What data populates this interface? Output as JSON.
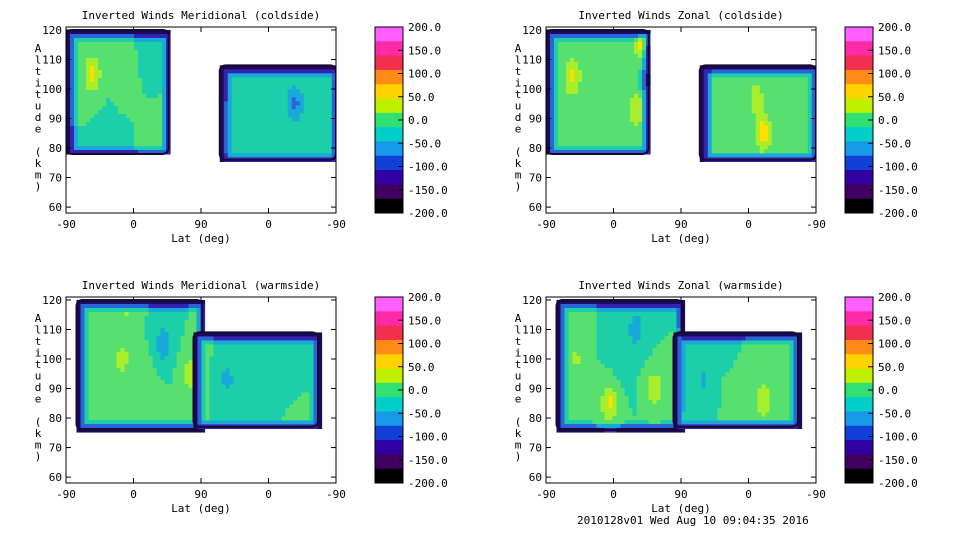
{
  "footer_label": "2010128v01 Wed Aug 10 09:04:35 2016",
  "colorbar": {
    "labels": [
      "200.0",
      "150.0",
      "100.0",
      "50.0",
      "0.0",
      "-50.0",
      "-100.0",
      "-150.0",
      "-200.0"
    ],
    "range": [
      -200,
      200
    ],
    "colors": [
      "#ff60ff",
      "#ff2aa8",
      "#f0304e",
      "#ff8a18",
      "#ffd200",
      "#bff000",
      "#30e070",
      "#00d0c8",
      "#1898e8",
      "#1040d8",
      "#3000a0",
      "#400060",
      "#000000"
    ]
  },
  "contour_colors": [
    "#1a0a5c",
    "#3524b0",
    "#2a64d8",
    "#1aa8d8",
    "#1ccfa8",
    "#57e070",
    "#a9ee2c",
    "#ffe000",
    "#ffa800",
    "#e85a10"
  ],
  "chart_data": [
    {
      "type": "heatmap",
      "title": "Inverted Winds Meridional (coldside)",
      "xlabel": "Lat (deg)",
      "ylabel": "Altitude (km)",
      "x_ticks": [
        "-90",
        "0",
        "90",
        "0",
        "-90"
      ],
      "y_ticks": [
        "60",
        "70",
        "80",
        "90",
        "100",
        "110",
        "120"
      ],
      "ylim": [
        58,
        121
      ],
      "zlim": [
        -200,
        200
      ],
      "ascending_lat_range": [
        -90,
        47
      ],
      "descending_lat_range": [
        65,
        -90
      ],
      "ascending_alt_range": [
        78,
        120
      ],
      "descending_alt_range": [
        76,
        108
      ],
      "blobs": [
        {
          "x": -55,
          "y": 105,
          "value": 90,
          "spread": 12
        },
        {
          "x": 30,
          "y": 107,
          "value": -35,
          "spread": 14
        },
        {
          "x": -20,
          "y": 85,
          "value": -10,
          "spread": 20
        },
        {
          "x": 20,
          "y": 86,
          "value": 40,
          "spread": 12
        },
        {
          "x": -10,
          "y": 100,
          "value": 25,
          "spread": 14
        },
        {
          "x": 110,
          "y": 88,
          "value": 65,
          "spread": 10
        },
        {
          "x": 50,
          "y": 92,
          "value": 50,
          "spread": 15
        },
        {
          "x": 150,
          "y": 90,
          "value": -20,
          "spread": 18
        },
        {
          "x": 215,
          "y": 95,
          "value": -90,
          "spread": 12
        }
      ]
    },
    {
      "type": "heatmap",
      "title": "Inverted Winds Zonal (coldside)",
      "xlabel": "Lat (deg)",
      "ylabel": "Altitude (km)",
      "x_ticks": [
        "-90",
        "0",
        "90",
        "0",
        "-90"
      ],
      "y_ticks": [
        "60",
        "70",
        "80",
        "90",
        "100",
        "110",
        "120"
      ],
      "ylim": [
        58,
        121
      ],
      "zlim": [
        -200,
        200
      ],
      "ascending_lat_range": [
        -90,
        47
      ],
      "descending_lat_range": [
        65,
        -90
      ],
      "ascending_alt_range": [
        78,
        120
      ],
      "descending_alt_range": [
        76,
        108
      ],
      "blobs": [
        {
          "x": 40,
          "y": 118,
          "value": 130,
          "spread": 14
        },
        {
          "x": -55,
          "y": 104,
          "value": 90,
          "spread": 12
        },
        {
          "x": 30,
          "y": 93,
          "value": 80,
          "spread": 12
        },
        {
          "x": 45,
          "y": 103,
          "value": -70,
          "spread": 10
        },
        {
          "x": -20,
          "y": 92,
          "value": 10,
          "spread": 20
        },
        {
          "x": 110,
          "y": 92,
          "value": -15,
          "spread": 14
        },
        {
          "x": 160,
          "y": 90,
          "value": 30,
          "spread": 15
        },
        {
          "x": 200,
          "y": 85,
          "value": 100,
          "spread": 12
        },
        {
          "x": 190,
          "y": 97,
          "value": 60,
          "spread": 12
        }
      ]
    },
    {
      "type": "heatmap",
      "title": "Inverted Winds Meridional (warmside)",
      "xlabel": "Lat (deg)",
      "ylabel": "Altitude (km)",
      "x_ticks": [
        "-90",
        "0",
        "90",
        "0",
        "-90"
      ],
      "y_ticks": [
        "60",
        "70",
        "80",
        "90",
        "100",
        "110",
        "120"
      ],
      "ylim": [
        58,
        121
      ],
      "zlim": [
        -200,
        200
      ],
      "ascending_lat_range": [
        -76,
        92
      ],
      "descending_lat_range": [
        100,
        -66
      ],
      "ascending_alt_range": [
        76,
        120
      ],
      "descending_alt_range": [
        77,
        109
      ],
      "blobs": [
        {
          "x": -10,
          "y": 115,
          "value": 40,
          "spread": 12
        },
        {
          "x": 40,
          "y": 105,
          "value": -70,
          "spread": 12
        },
        {
          "x": -50,
          "y": 95,
          "value": 30,
          "spread": 14
        },
        {
          "x": -15,
          "y": 100,
          "value": 55,
          "spread": 12
        },
        {
          "x": 20,
          "y": 95,
          "value": 10,
          "spread": 16
        },
        {
          "x": 75,
          "y": 95,
          "value": 60,
          "spread": 12
        },
        {
          "x": 125,
          "y": 93,
          "value": -60,
          "spread": 10
        },
        {
          "x": 170,
          "y": 100,
          "value": -20,
          "spread": 15
        },
        {
          "x": 215,
          "y": 92,
          "value": -40,
          "spread": 12
        },
        {
          "x": 220,
          "y": 84,
          "value": 30,
          "spread": 10
        }
      ]
    },
    {
      "type": "heatmap",
      "title": "Inverted Winds Zonal (warmside)",
      "xlabel": "Lat (deg)",
      "ylabel": "Altitude (km)",
      "x_ticks": [
        "-90",
        "0",
        "90",
        "0",
        "-90"
      ],
      "y_ticks": [
        "60",
        "70",
        "80",
        "90",
        "100",
        "110",
        "120"
      ],
      "ylim": [
        58,
        121
      ],
      "zlim": [
        -200,
        200
      ],
      "ascending_lat_range": [
        -76,
        92
      ],
      "descending_lat_range": [
        100,
        -66
      ],
      "ascending_alt_range": [
        76,
        120
      ],
      "descending_alt_range": [
        77,
        109
      ],
      "blobs": [
        {
          "x": -50,
          "y": 100,
          "value": 45,
          "spread": 12
        },
        {
          "x": 30,
          "y": 110,
          "value": -55,
          "spread": 14
        },
        {
          "x": -5,
          "y": 85,
          "value": 90,
          "spread": 12
        },
        {
          "x": 55,
          "y": 90,
          "value": 70,
          "spread": 12
        },
        {
          "x": 10,
          "y": 97,
          "value": -10,
          "spread": 16
        },
        {
          "x": 120,
          "y": 93,
          "value": -50,
          "spread": 10
        },
        {
          "x": 175,
          "y": 95,
          "value": 25,
          "spread": 15
        },
        {
          "x": 200,
          "y": 86,
          "value": 70,
          "spread": 12
        },
        {
          "x": 160,
          "y": 103,
          "value": -15,
          "spread": 12
        }
      ]
    }
  ]
}
